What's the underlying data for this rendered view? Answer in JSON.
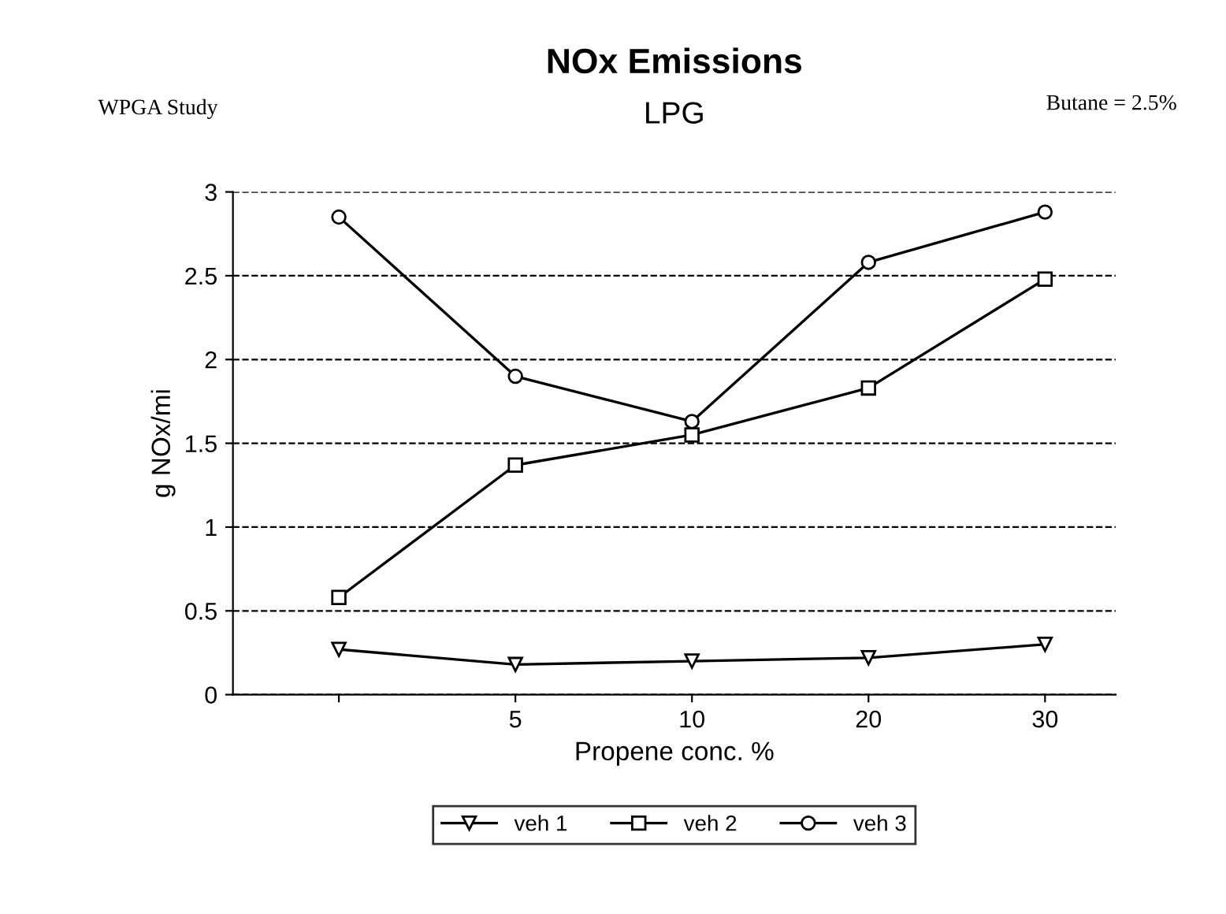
{
  "chart_data": {
    "type": "line",
    "title": "NOx Emissions",
    "subtitle": "LPG",
    "xlabel": "Propene conc. %",
    "ylabel": "g NOx/mi",
    "annotations": [
      "WPGA Study",
      "Butane = 2.5%"
    ],
    "categories": [
      null,
      "5",
      "10",
      "20",
      "30"
    ],
    "series": [
      {
        "name": "veh 1",
        "color": "#000000",
        "marker": "triangle",
        "values": [
          0.27,
          0.18,
          0.2,
          0.22,
          0.3
        ]
      },
      {
        "name": "veh 2",
        "color": "#000000",
        "marker": "square",
        "values": [
          0.58,
          1.37,
          1.55,
          1.83,
          2.48
        ]
      },
      {
        "name": "veh 3",
        "color": "#000000",
        "marker": "circle",
        "values": [
          2.85,
          1.9,
          1.63,
          2.58,
          2.88
        ]
      }
    ],
    "ylim": [
      0,
      3
    ],
    "yticks": [
      0,
      0.5,
      1,
      1.5,
      2,
      2.5,
      3
    ],
    "grid": "y",
    "legend": "bottom",
    "line_style": "solid"
  }
}
